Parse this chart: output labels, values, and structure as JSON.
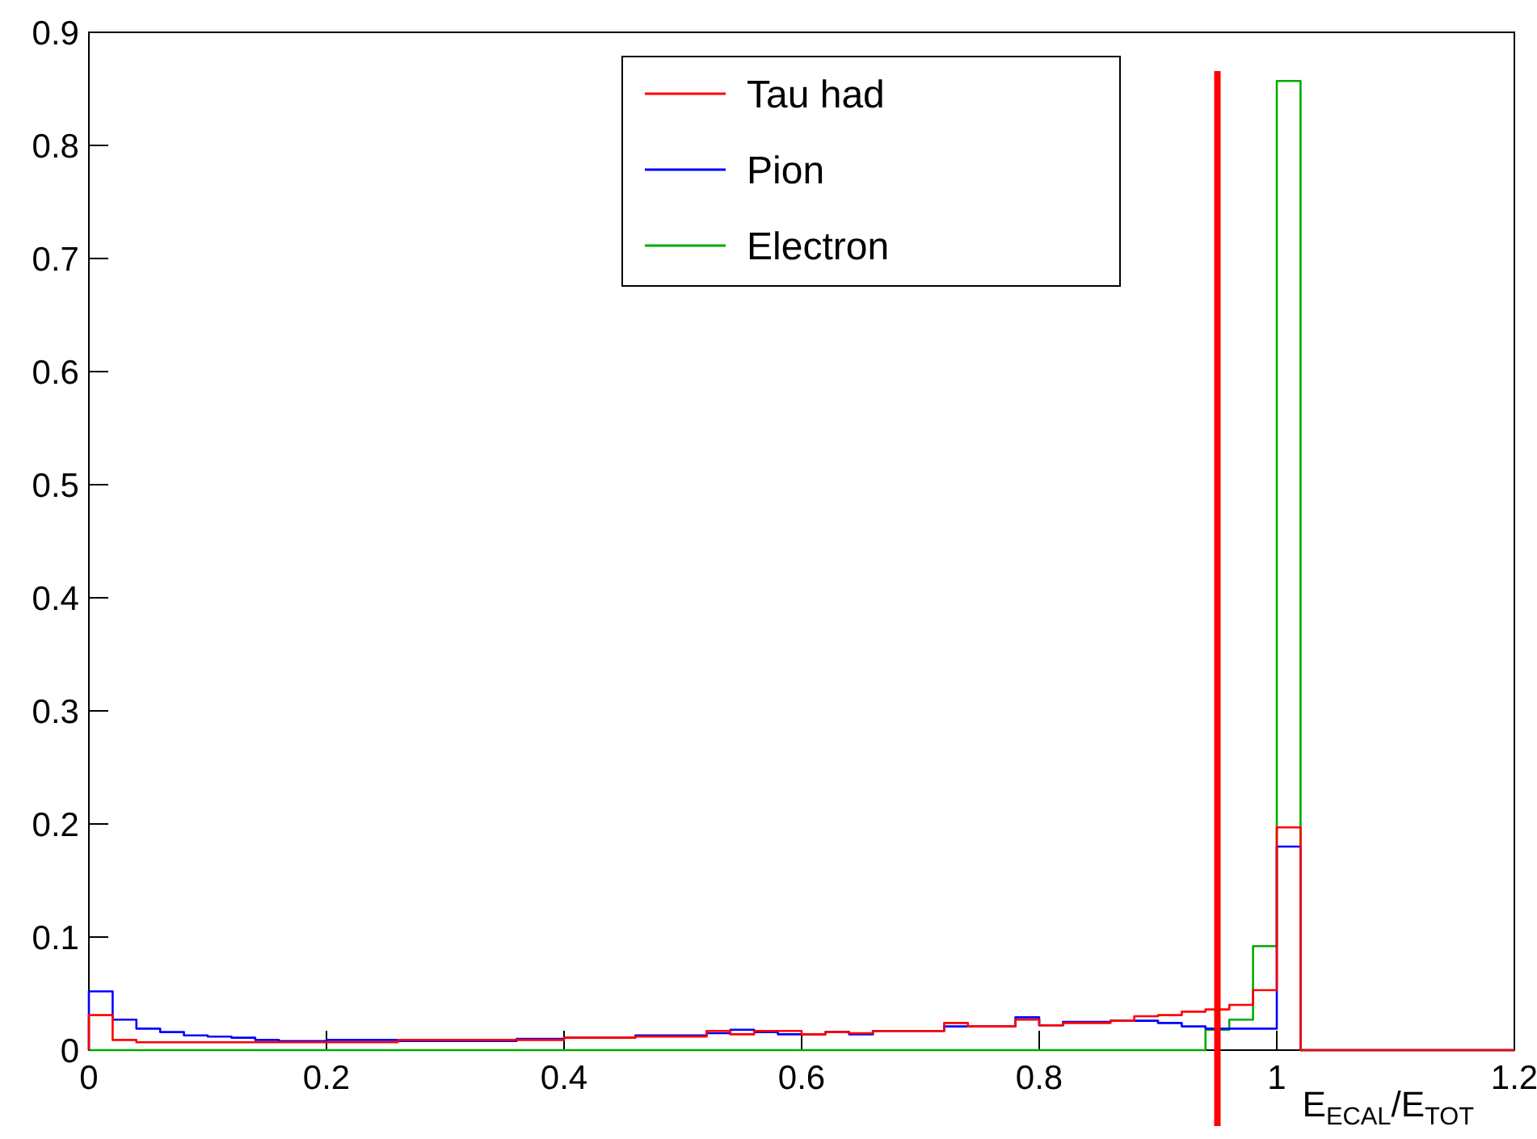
{
  "chart_data": {
    "type": "histogram",
    "xlabel": "E$_{ECAL}$/E$_{TOT}$",
    "bins": [
      0,
      0.02,
      0.04,
      0.06,
      0.08,
      0.1,
      0.12,
      0.14,
      0.16,
      0.18,
      0.2,
      0.22,
      0.24,
      0.26,
      0.28,
      0.3,
      0.32,
      0.34,
      0.36,
      0.38,
      0.4,
      0.42,
      0.44,
      0.46,
      0.48,
      0.5,
      0.52,
      0.54,
      0.56,
      0.58,
      0.6,
      0.62,
      0.64,
      0.66,
      0.68,
      0.7,
      0.72,
      0.74,
      0.76,
      0.78,
      0.8,
      0.82,
      0.84,
      0.86,
      0.88,
      0.9,
      0.92,
      0.94,
      0.96,
      0.98,
      1,
      1.02,
      1.04,
      1.06,
      1.08,
      1.1,
      1.12,
      1.14,
      1.16,
      1.18,
      1.2
    ],
    "series": [
      {
        "name": "Tau had",
        "color": "#ff0000",
        "values": [
          0.031,
          0.009,
          0.007,
          0.007,
          0.007,
          0.007,
          0.007,
          0.007,
          0.007,
          0.007,
          0.007,
          0.007,
          0.007,
          0.009,
          0.009,
          0.009,
          0.009,
          0.009,
          0.009,
          0.009,
          0.011,
          0.011,
          0.011,
          0.012,
          0.012,
          0.012,
          0.017,
          0.014,
          0.017,
          0.017,
          0.014,
          0.016,
          0.015,
          0.017,
          0.017,
          0.017,
          0.024,
          0.021,
          0.021,
          0.027,
          0.022,
          0.024,
          0.024,
          0.026,
          0.03,
          0.031,
          0.034,
          0.036,
          0.04,
          0.053,
          0.197,
          0,
          0,
          0,
          0,
          0,
          0,
          0,
          0,
          0
        ]
      },
      {
        "name": "Pion",
        "color": "#0000ff",
        "values": [
          0.052,
          0.027,
          0.019,
          0.016,
          0.013,
          0.012,
          0.011,
          0.009,
          0.008,
          0.008,
          0.009,
          0.009,
          0.009,
          0.008,
          0.008,
          0.008,
          0.008,
          0.008,
          0.01,
          0.01,
          0.011,
          0.011,
          0.011,
          0.013,
          0.013,
          0.013,
          0.015,
          0.018,
          0.016,
          0.014,
          0.014,
          0.016,
          0.014,
          0.017,
          0.017,
          0.017,
          0.021,
          0.021,
          0.021,
          0.029,
          0.022,
          0.025,
          0.025,
          0.026,
          0.026,
          0.024,
          0.021,
          0.019,
          0.019,
          0.019,
          0.18,
          0,
          0,
          0,
          0,
          0,
          0,
          0,
          0,
          0
        ]
      },
      {
        "name": "Electron",
        "color": "#00aa00",
        "values": [
          0,
          0,
          0,
          0,
          0,
          0,
          0,
          0,
          0,
          0,
          0,
          0,
          0,
          0,
          0,
          0,
          0,
          0,
          0,
          0,
          0,
          0,
          0,
          0,
          0,
          0,
          0,
          0,
          0,
          0,
          0,
          0,
          0,
          0,
          0,
          0,
          0,
          0,
          0,
          0,
          0,
          0,
          0,
          0,
          0,
          0,
          0,
          0.018,
          0.027,
          0.092,
          0.857,
          0,
          0,
          0,
          0,
          0,
          0,
          0,
          0,
          0
        ]
      }
    ],
    "xlim": [
      0,
      1.2
    ],
    "ylim": [
      0,
      0.9
    ],
    "xticks": [
      0,
      0.2,
      0.4,
      0.6,
      0.8,
      1,
      1.2
    ],
    "yticks": [
      0,
      0.1,
      0.2,
      0.3,
      0.4,
      0.5,
      0.6,
      0.7,
      0.8,
      0.9
    ],
    "ref_lines": [
      {
        "axis": "x",
        "value": 0.95,
        "color": "#ff0000"
      }
    ],
    "legend": "top",
    "grid": false
  }
}
